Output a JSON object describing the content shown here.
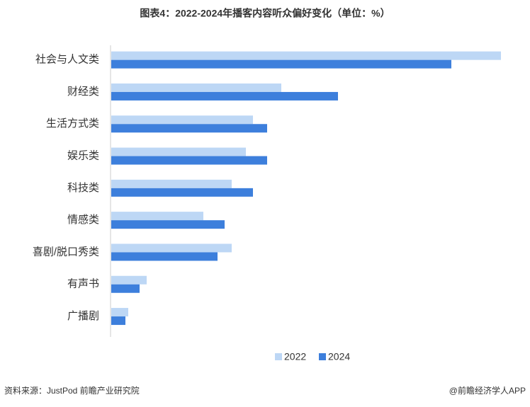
{
  "chart_data": {
    "type": "hbar",
    "title": "图表4：2022-2024年播客内容听众偏好变化（单位：%）",
    "categories": [
      "社会与人文类",
      "财经类",
      "生活方式类",
      "娱乐类",
      "科技类",
      "情感类",
      "喜剧/脱口秀类",
      "有声书",
      "广播剧"
    ],
    "series": [
      {
        "name": "2022",
        "color": "#bdd7f5",
        "values": [
          55,
          24,
          20,
          19,
          17,
          13,
          17,
          5,
          2.4
        ]
      },
      {
        "name": "2024",
        "color": "#3d7fdc",
        "values": [
          48,
          32,
          22,
          22,
          20,
          16,
          15,
          4,
          2
        ]
      }
    ],
    "legend": "bottom",
    "source": "资料来源：JustPod  前瞻产业研究院",
    "credit": "@前瞻经济学人APP"
  }
}
